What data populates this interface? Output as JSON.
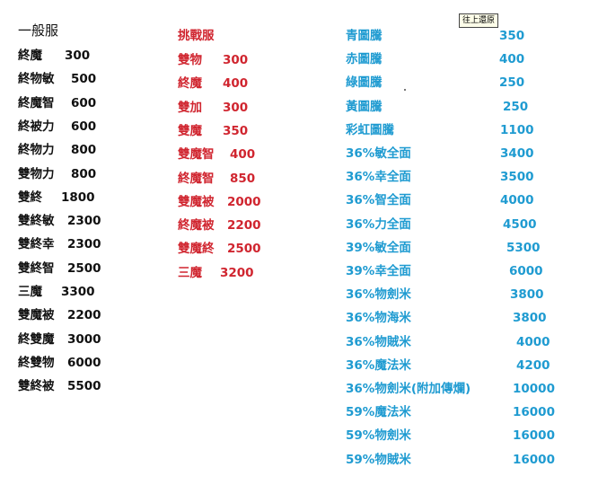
{
  "restore_button": "往上還原",
  "colors": {
    "general": "#111111",
    "challenge": "#d0252f",
    "totem": "#1f9bd1"
  },
  "general": {
    "title": "一般服",
    "items": [
      {
        "name": "終魔",
        "price": "300"
      },
      {
        "name": "終物敏",
        "price": "500"
      },
      {
        "name": "終魔智",
        "price": "600"
      },
      {
        "name": "終被力",
        "price": "600"
      },
      {
        "name": "終物力",
        "price": "800"
      },
      {
        "name": "雙物力",
        "price": "800"
      },
      {
        "name": "雙終",
        "price": "1800"
      },
      {
        "name": "雙終敏",
        "price": "2300"
      },
      {
        "name": "雙終幸",
        "price": "2300"
      },
      {
        "name": "雙終智",
        "price": "2500"
      },
      {
        "name": "三魔",
        "price": "3300"
      },
      {
        "name": "雙魔被",
        "price": "2200"
      },
      {
        "name": "終雙魔",
        "price": "3000"
      },
      {
        "name": "終雙物",
        "price": "6000"
      },
      {
        "name": "雙終被",
        "price": "5500"
      }
    ]
  },
  "challenge": {
    "title": "挑戰服",
    "items": [
      {
        "name": "雙物",
        "price": "300"
      },
      {
        "name": "終魔",
        "price": "400"
      },
      {
        "name": "雙加",
        "price": "300"
      },
      {
        "name": "雙魔",
        "price": "350"
      },
      {
        "name": "雙魔智",
        "price": "400"
      },
      {
        "name": "終魔智",
        "price": "850"
      },
      {
        "name": "雙魔被",
        "price": "2000"
      },
      {
        "name": "終魔被",
        "price": "2200"
      },
      {
        "name": "雙魔終",
        "price": "2500"
      },
      {
        "name": "三魔",
        "price": "3200"
      }
    ]
  },
  "totems": {
    "items": [
      {
        "name": "青圖騰",
        "price": "350"
      },
      {
        "name": "赤圖騰",
        "price": "400"
      },
      {
        "name": "綠圖騰",
        "price": "250"
      },
      {
        "name": "黃圖騰",
        "price": "250"
      },
      {
        "name": "彩虹圖騰",
        "price": "1100"
      },
      {
        "name": "36%敏全面",
        "price": "3400"
      },
      {
        "name": "36%幸全面",
        "price": "3500"
      },
      {
        "name": "36%智全面",
        "price": "4000"
      },
      {
        "name": "36%力全面",
        "price": "4500"
      },
      {
        "name": "39%敏全面",
        "price": "5300"
      },
      {
        "name": "39%幸全面",
        "price": "6000"
      },
      {
        "name": "36%物劍米",
        "price": "3800"
      },
      {
        "name": "36%物海米",
        "price": "3800"
      },
      {
        "name": "36%物賊米",
        "price": "4000"
      },
      {
        "name": "36%魔法米",
        "price": "4200"
      },
      {
        "name": "36%物劍米(附加傳爛)",
        "price": "10000"
      },
      {
        "name": "59%魔法米",
        "price": "16000"
      },
      {
        "name": "59%物劍米",
        "price": "16000"
      },
      {
        "name": "59%物賊米",
        "price": "16000"
      }
    ]
  }
}
